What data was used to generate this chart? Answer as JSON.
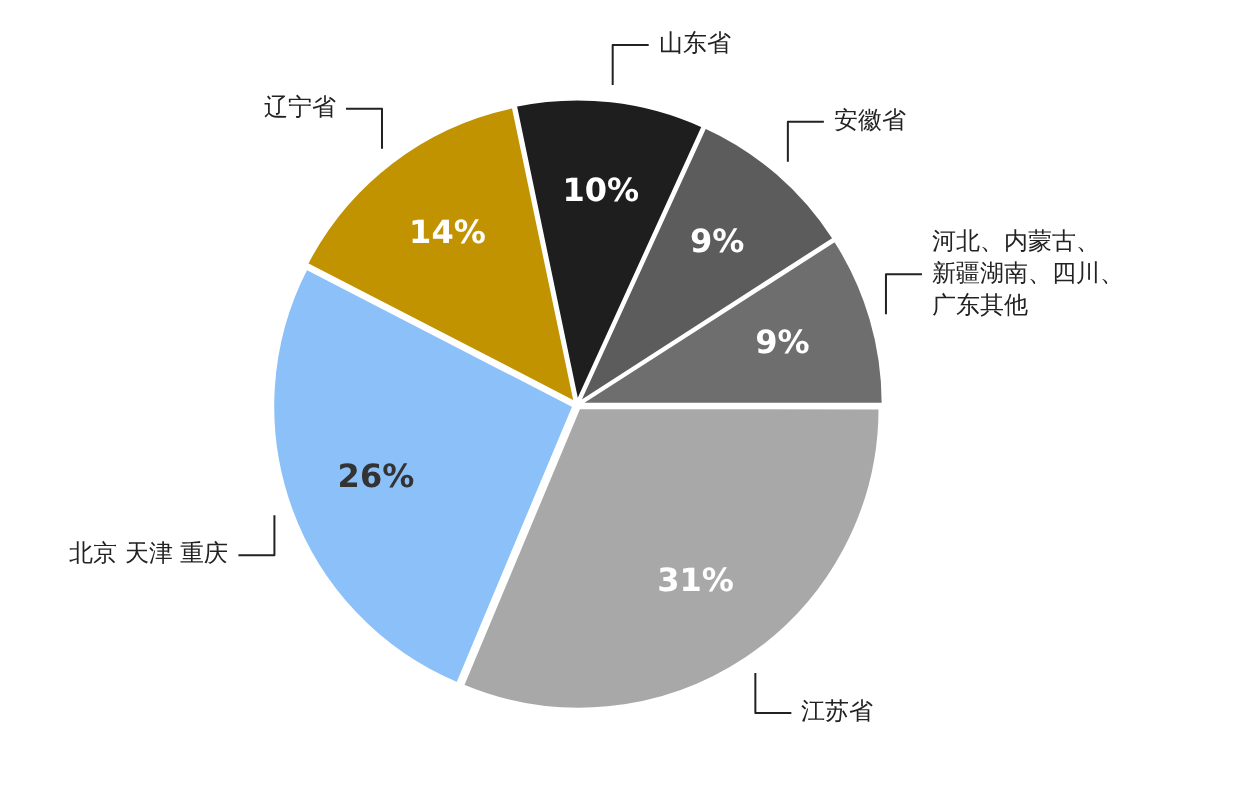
{
  "chart_data": {
    "type": "pie",
    "categories": [
      "江苏省",
      "北京 天津 重庆",
      "辽宁省",
      "山东省",
      "安徽省",
      "河北、内蒙古、新疆湖南、四川、广东其他"
    ],
    "values": [
      31,
      26,
      14,
      10,
      9,
      9
    ],
    "colors": [
      "#a8a8a8",
      "#8cc0f8",
      "#c29300",
      "#1e1e1e",
      "#5c5c5c",
      "#6e6e6e"
    ],
    "value_labels": [
      "31%",
      "26%",
      "14%",
      "10%",
      "9%",
      "9%"
    ]
  }
}
